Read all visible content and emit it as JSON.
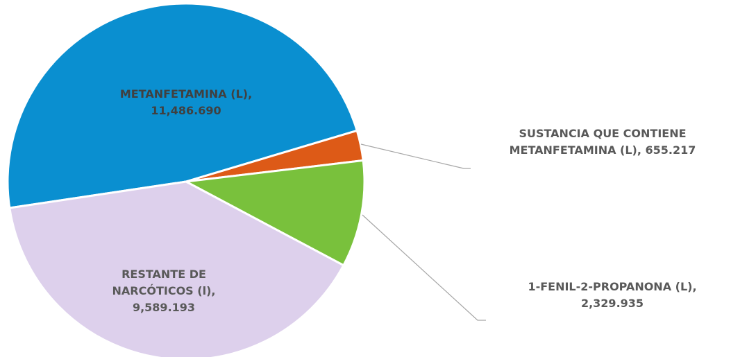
{
  "chart_data": {
    "type": "pie",
    "categories": [
      "METANFETAMINA (L),",
      "SUSTANCIA QUE CONTIENE METANFETAMINA (L),",
      "1-FENIL-2-PROPANONA (L),",
      "RESTANTE DE NARCÓTICOS (l),"
    ],
    "values": [
      11486.69,
      655.217,
      2329.935,
      9589.193
    ],
    "value_labels": [
      "11,486.690",
      "655.217",
      "2,329.935",
      "9,589.193"
    ],
    "colors": [
      "#0a8fd0",
      "#dd5a17",
      "#79c13c",
      "#ddd0ec"
    ]
  }
}
